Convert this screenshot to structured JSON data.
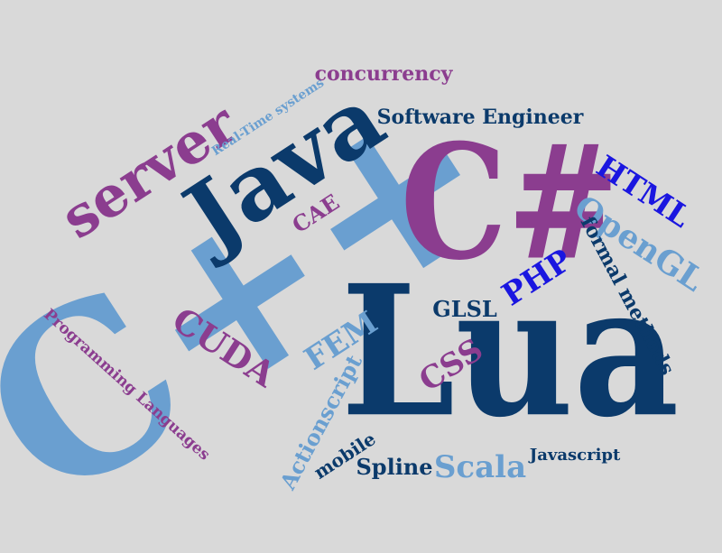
{
  "background": "#d9d9d9",
  "palette": {
    "navy": "#0b3a6b",
    "purple": "#8b3d8f",
    "light_blue": "#6a9fd0",
    "blue": "#1a16e0"
  },
  "words": [
    {
      "text": "Lua",
      "color": "#0b3a6b"
    },
    {
      "text": "C++",
      "color": "#6a9fd0"
    },
    {
      "text": "C#",
      "color": "#8b3d8f"
    },
    {
      "text": "Java",
      "color": "#0b3a6b"
    },
    {
      "text": "server",
      "color": "#8b3d8f"
    },
    {
      "text": "concurrency",
      "color": "#8b3d8f"
    },
    {
      "text": "Real-Time systems",
      "color": "#6a9fd0"
    },
    {
      "text": "Software Engineer",
      "color": "#0b3a6b"
    },
    {
      "text": "HTML",
      "color": "#1a16e0"
    },
    {
      "text": "OpenGL",
      "color": "#6a9fd0"
    },
    {
      "text": "PHP",
      "color": "#1a16e0"
    },
    {
      "text": "formal methods",
      "color": "#0b3a6b"
    },
    {
      "text": "CAE",
      "color": "#8b3d8f"
    },
    {
      "text": "GLSL",
      "color": "#0b3a6b"
    },
    {
      "text": "CUDA",
      "color": "#8b3d8f"
    },
    {
      "text": "FEM",
      "color": "#6a9fd0"
    },
    {
      "text": "CSS",
      "color": "#8b3d8f"
    },
    {
      "text": "Programming Languages",
      "color": "#8b3d8f"
    },
    {
      "text": "Actionscript",
      "color": "#6a9fd0"
    },
    {
      "text": "mobile",
      "color": "#0b3a6b"
    },
    {
      "text": "Spline",
      "color": "#0b3a6b"
    },
    {
      "text": "Scala",
      "color": "#6a9fd0"
    },
    {
      "text": "Javascript",
      "color": "#0b3a6b"
    }
  ]
}
